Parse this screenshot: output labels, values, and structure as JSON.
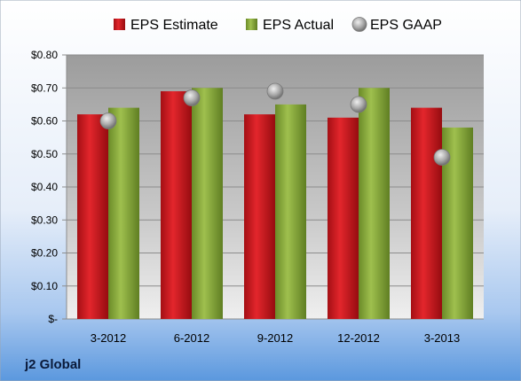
{
  "company": "j2 Global",
  "chart_data": {
    "type": "bar",
    "categories": [
      "3-2012",
      "6-2012",
      "9-2012",
      "12-2012",
      "3-2013"
    ],
    "series": [
      {
        "name": "EPS Estimate",
        "kind": "bar",
        "color": "#c0141a",
        "values": [
          0.62,
          0.69,
          0.62,
          0.61,
          0.64
        ]
      },
      {
        "name": "EPS Actual",
        "kind": "bar",
        "color": "#7a9a32",
        "values": [
          0.64,
          0.7,
          0.65,
          0.7,
          0.58
        ]
      },
      {
        "name": "EPS GAAP",
        "kind": "marker",
        "color": "#9a9a9a",
        "values": [
          0.6,
          0.67,
          0.69,
          0.65,
          0.49
        ]
      }
    ],
    "yticks": [
      "$-",
      "$0.10",
      "$0.20",
      "$0.30",
      "$0.40",
      "$0.50",
      "$0.60",
      "$0.70",
      "$0.80"
    ],
    "ylim": [
      0,
      0.8
    ],
    "grid": true,
    "legend_position": "top"
  }
}
